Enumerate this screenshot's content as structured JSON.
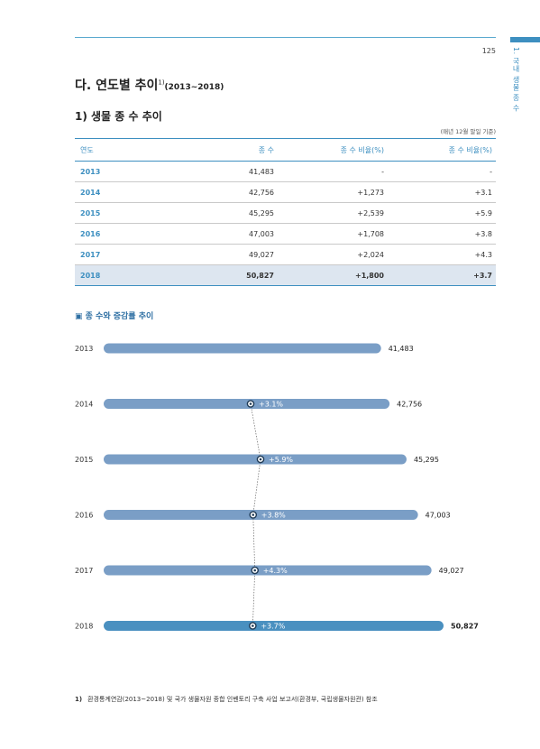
{
  "page": {
    "number": "125",
    "side_tab": "1. 국내 생물 종 수",
    "section_title": "다. 연도별 추이",
    "section_sup": "1)",
    "section_range": "(2013~2018)",
    "sub_title": "1) 생물 종 수 추이",
    "unit_note": "(매년 12월 말일 기준)"
  },
  "table": {
    "headers": [
      "연도",
      "종 수",
      "종 수 비율(%)",
      "종 수 비율(%)"
    ],
    "rows": [
      {
        "year": "2013",
        "species": "41,483",
        "change": "-",
        "rate": "-"
      },
      {
        "year": "2014",
        "species": "42,756",
        "change": "+1,273",
        "rate": "+3.1"
      },
      {
        "year": "2015",
        "species": "45,295",
        "change": "+2,539",
        "rate": "+5.9"
      },
      {
        "year": "2016",
        "species": "47,003",
        "change": "+1,708",
        "rate": "+3.8"
      },
      {
        "year": "2017",
        "species": "49,027",
        "change": "+2,024",
        "rate": "+4.3"
      },
      {
        "year": "2018",
        "species": "50,827",
        "change": "+1,800",
        "rate": "+3.7"
      }
    ]
  },
  "chart": {
    "title": "▣ 종 수와 증감률 추이"
  },
  "chart_data": {
    "type": "bar",
    "orientation": "horizontal",
    "title": "종 수와 증감률 추이",
    "categories": [
      "2013",
      "2014",
      "2015",
      "2016",
      "2017",
      "2018"
    ],
    "values": [
      41483,
      42756,
      45295,
      47003,
      49027,
      50827
    ],
    "value_labels": [
      "41,483",
      "42,756",
      "45,295",
      "47,003",
      "49,027",
      "50,827"
    ],
    "growth_labels": [
      "",
      "+3.1%",
      "+5.9%",
      "+3.8%",
      "+4.3%",
      "+3.7%"
    ],
    "growth_values": [
      null,
      3.1,
      5.9,
      3.8,
      4.3,
      3.7
    ],
    "bar_color": "#7a9ec6",
    "highlight_color": "#4a90c0",
    "grid": false,
    "legend": "none"
  },
  "footnote": {
    "mark": "1)",
    "text": "환경통계연감(2013~2018) 및 국가 생물자원 종합 인벤토리 구축 사업 보고서(환경부, 국립생물자원관) 참조"
  }
}
